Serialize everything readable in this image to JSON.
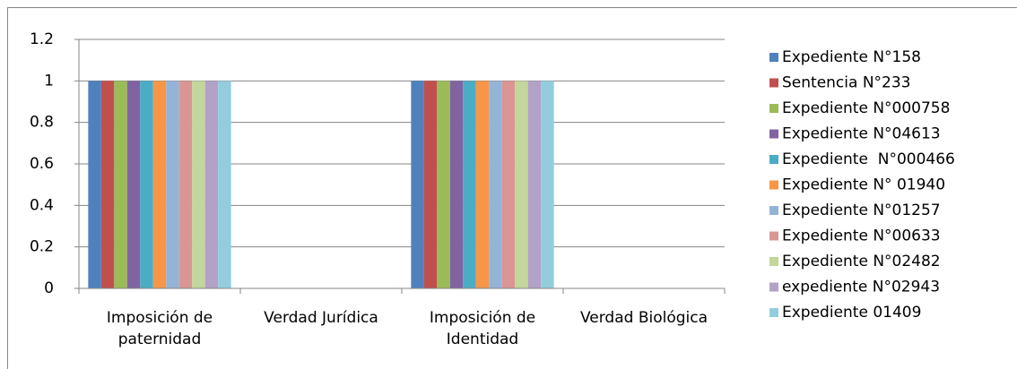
{
  "chart_data": {
    "type": "bar",
    "categories": [
      "Imposición de paternidad",
      "Verdad Jurídica",
      "Imposición de Identidad",
      "Verdad Biológica"
    ],
    "series": [
      {
        "name": "Expediente N°158",
        "color": "#4f81bd",
        "values": [
          1,
          0,
          1,
          0
        ]
      },
      {
        "name": "Sentencia N°233",
        "color": "#c0504d",
        "values": [
          1,
          0,
          1,
          0
        ]
      },
      {
        "name": "Expediente N°000758",
        "color": "#9bbb59",
        "values": [
          1,
          0,
          1,
          0
        ]
      },
      {
        "name": "Expediente N°04613",
        "color": "#8064a2",
        "values": [
          1,
          0,
          1,
          0
        ]
      },
      {
        "name": "Expediente  N°000466",
        "color": "#4bacc6",
        "values": [
          1,
          0,
          1,
          0
        ]
      },
      {
        "name": "Expediente N° 01940",
        "color": "#f79646",
        "values": [
          1,
          0,
          1,
          0
        ]
      },
      {
        "name": "Expediente N°01257",
        "color": "#95b3d7",
        "values": [
          1,
          0,
          1,
          0
        ]
      },
      {
        "name": "Expediente N°00633",
        "color": "#d99694",
        "values": [
          1,
          0,
          1,
          0
        ]
      },
      {
        "name": "Expediente N°02482",
        "color": "#c3d69b",
        "values": [
          1,
          0,
          1,
          0
        ]
      },
      {
        "name": "expediente N°02943",
        "color": "#b3a2c7",
        "values": [
          1,
          0,
          1,
          0
        ]
      },
      {
        "name": "Expediente 01409",
        "color": "#93cddd",
        "values": [
          1,
          0,
          1,
          0
        ]
      }
    ],
    "ylim": [
      0,
      1.2
    ],
    "yticks": [
      0,
      0.2,
      0.4,
      0.6,
      0.8,
      1,
      1.2
    ],
    "grid": true,
    "legend": "right"
  }
}
